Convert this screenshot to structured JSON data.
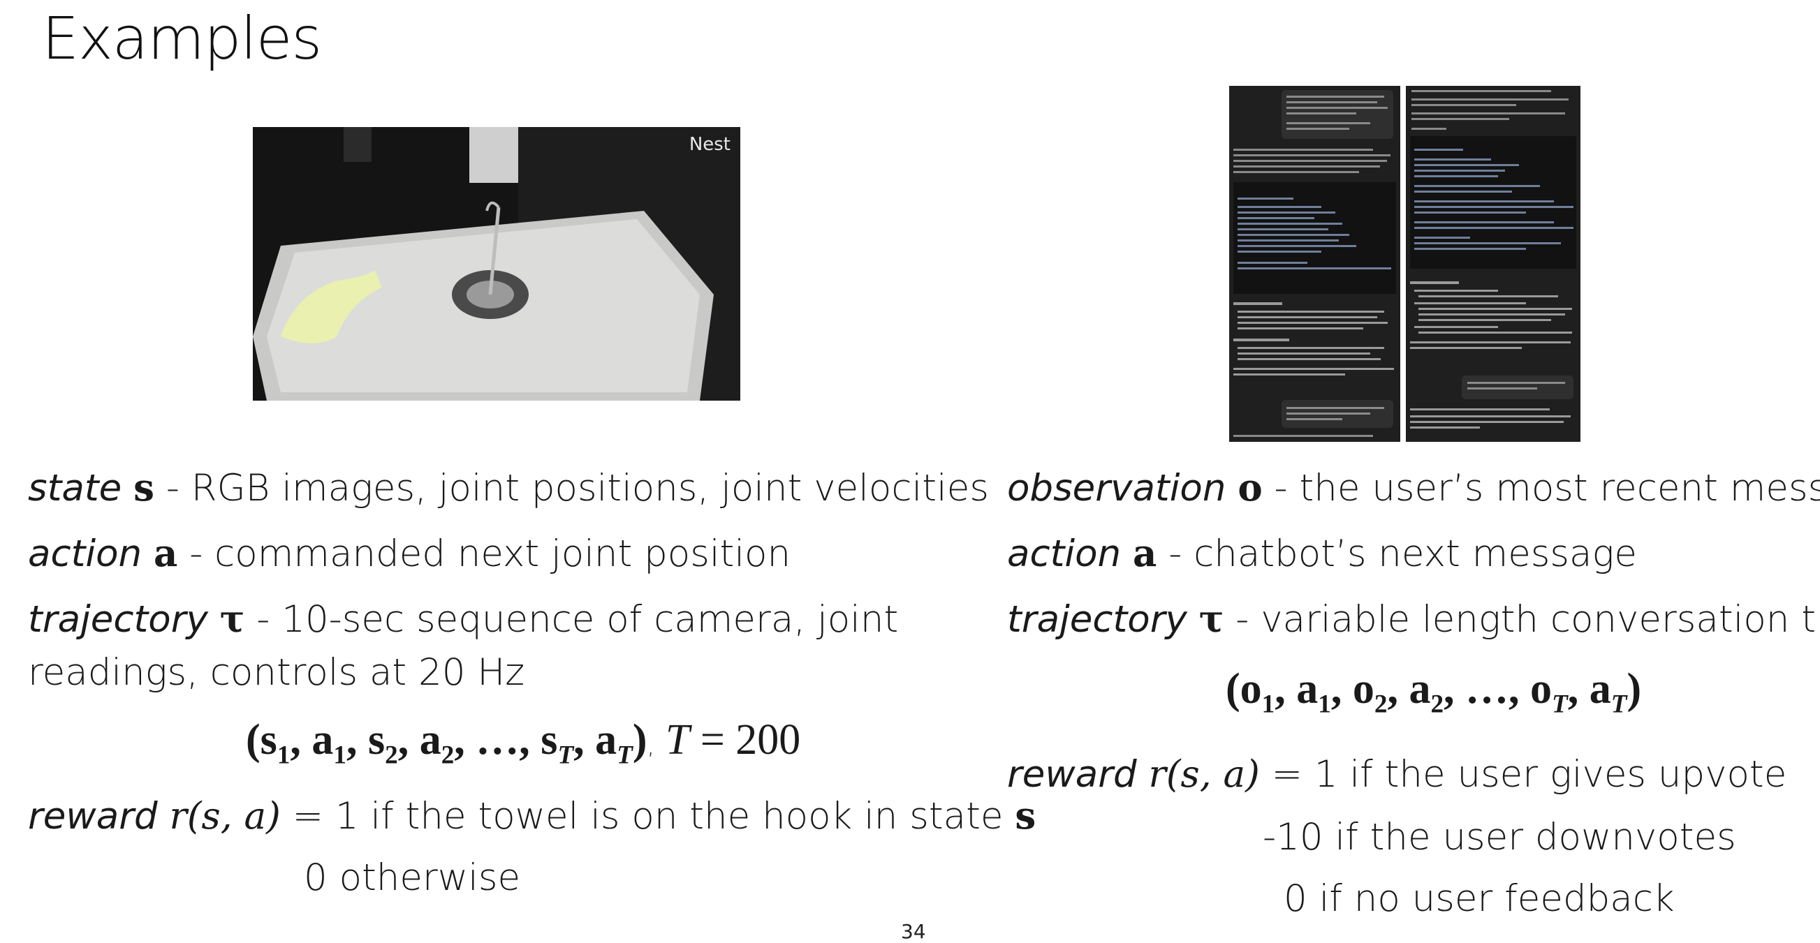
{
  "title": "Examples",
  "left": {
    "photo_label": "Nest",
    "state_term": "state",
    "state_sym": "s",
    "state_desc": " - RGB images, joint positions, joint velocities",
    "action_term": "action",
    "action_sym": "a",
    "action_desc": " - commanded next joint position",
    "traj_term": "trajectory",
    "traj_sym": "τ",
    "traj_desc": " - 10-sec sequence of camera, joint",
    "traj_desc2": "readings, controls at 20 Hz",
    "formula_main": "(s",
    "formula_note": ", T = 200",
    "reward_term": "reward",
    "reward_expr": "r(s, a)",
    "reward_desc": " = 1 if the towel is on the hook in state ",
    "reward_state": "s",
    "reward_otherwise": "0 otherwise"
  },
  "right": {
    "obs_term": "observation",
    "obs_sym": "o",
    "obs_desc": " - the user’s most recent message",
    "action_term": "action",
    "action_sym": "a",
    "action_desc": " - chatbot’s next message",
    "traj_term": "trajectory",
    "traj_sym": "τ",
    "traj_desc": " - variable length conversation trace",
    "reward_term": "reward",
    "reward_expr": "r(s, a)",
    "reward_desc": " = 1 if the user gives upvote",
    "reward_down": "-10 if the user downvotes",
    "reward_none": "0 if no user feedback"
  },
  "page_number": "34"
}
